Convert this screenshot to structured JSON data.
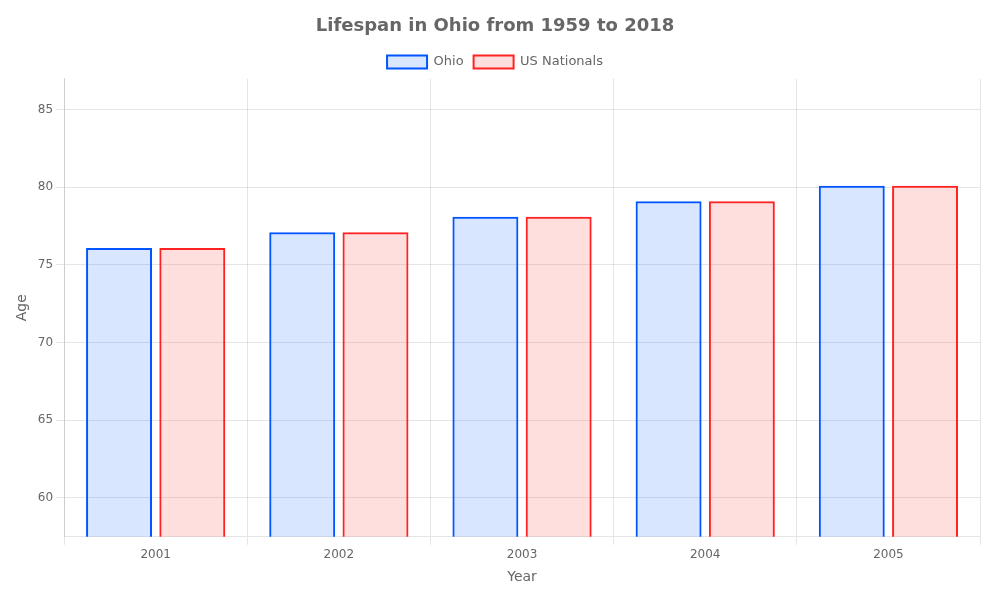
{
  "chart_data": {
    "type": "bar",
    "title": "Lifespan in Ohio from 1959 to 2018",
    "x_label": "Year",
    "y_label": "Age",
    "categories": [
      "2001",
      "2002",
      "2003",
      "2004",
      "2005"
    ],
    "series": [
      {
        "name": "Ohio",
        "color": "#0055ff",
        "values": [
          76.1,
          77.1,
          78.1,
          79.1,
          80.1
        ]
      },
      {
        "name": "US Nationals",
        "color": "#ff2222",
        "values": [
          76.1,
          77.1,
          78.1,
          79.1,
          80.1
        ]
      }
    ],
    "ylim": [
      57.5,
      87
    ],
    "yticks": [
      60,
      65,
      70,
      75,
      80,
      85
    ],
    "grid": true,
    "legend": "top"
  }
}
